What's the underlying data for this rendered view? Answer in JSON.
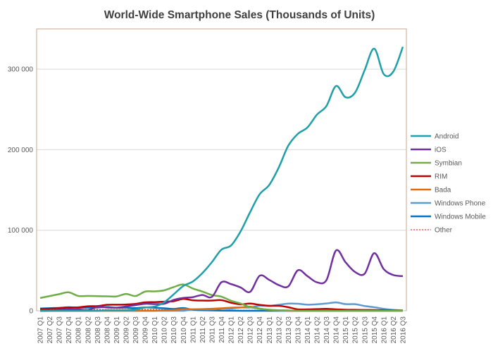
{
  "chart_data": {
    "type": "line",
    "title": "World-Wide Smartphone Sales (Thousands of Units)",
    "xlabel": "",
    "ylabel": "",
    "ylim": [
      0,
      350000
    ],
    "yticks": [
      0,
      100000,
      200000,
      300000
    ],
    "ytick_labels": [
      "0",
      "100 000",
      "200 000",
      "300 000"
    ],
    "grid": "horizontal",
    "legend_position": "right",
    "categories": [
      "2007 Q1",
      "2007 Q2",
      "2007 Q3",
      "2007 Q4",
      "2008 Q1",
      "2008 Q2",
      "2008 Q3",
      "2008 Q4",
      "2009 Q1",
      "2009 Q2",
      "2009 Q3",
      "2009 Q4",
      "2010 Q1",
      "2010 Q2",
      "2010 Q3",
      "2010 Q4",
      "2011 Q1",
      "2011 Q2",
      "2011 Q3",
      "2011 Q4",
      "2012 Q1",
      "2012 Q2",
      "2012 Q3",
      "2012 Q4",
      "2013 Q1",
      "2013 Q2",
      "2013 Q3",
      "2013 Q4",
      "2014 Q1",
      "2014 Q2",
      "2014 Q3",
      "2014 Q4",
      "2015 Q1",
      "2015 Q2",
      "2015 Q3",
      "2015 Q4",
      "2016 Q1",
      "2016 Q2",
      "2016 Q3"
    ],
    "series": [
      {
        "name": "Android",
        "color": "#1FA0A8",
        "dashed": false,
        "values": [
          0,
          0,
          0,
          0,
          0,
          0,
          0,
          640,
          575,
          756,
          1425,
          4043,
          5227,
          10606,
          20500,
          30801,
          36350,
          46776,
          60490,
          75906,
          81067,
          98529,
          122480,
          144720,
          156186,
          177898,
          205023,
          219613,
          227549,
          243484,
          254354,
          279058,
          265012,
          271010,
          298797,
          325394,
          293771,
          296912,
          327674
        ]
      },
      {
        "name": "iOS",
        "color": "#7030A0",
        "dashed": false,
        "values": [
          0,
          270,
          1105,
          1928,
          1726,
          893,
          4720,
          4079,
          3848,
          5325,
          7040,
          8676,
          8360,
          8743,
          13484,
          16011,
          16883,
          19629,
          17295,
          35456,
          33121,
          28935,
          23550,
          43457,
          38332,
          31900,
          30330,
          50224,
          43062,
          35345,
          38187,
          74832,
          60177,
          48086,
          46062,
          71526,
          51630,
          44395,
          43001
        ]
      },
      {
        "name": "Symbian",
        "color": "#70AD47",
        "dashed": false,
        "values": [
          15844,
          18273,
          20664,
          22903,
          18400,
          18405,
          18179,
          17949,
          17825,
          20881,
          18314,
          23857,
          24068,
          25387,
          29480,
          32642,
          27599,
          23853,
          19500,
          17458,
          12467,
          9072,
          4405,
          2569,
          1349,
          631,
          457,
          0,
          0,
          0,
          0,
          0,
          0,
          0,
          0,
          0,
          0,
          0,
          0
        ]
      },
      {
        "name": "RIM",
        "color": "#C00000",
        "dashed": false,
        "values": [
          2080,
          2500,
          3200,
          4025,
          4312,
          5594,
          5800,
          7443,
          7534,
          7782,
          8523,
          10508,
          10753,
          11229,
          11908,
          14762,
          13004,
          12652,
          12701,
          13185,
          9939,
          7991,
          8947,
          7333,
          6219,
          6180,
          4401,
          1807,
          1714,
          2044,
          2420,
          1734,
          1325,
          1153,
          977,
          907,
          660,
          400,
          200
        ]
      },
      {
        "name": "Bada",
        "color": "#E36C0A",
        "dashed": false,
        "values": [
          0,
          0,
          0,
          0,
          0,
          0,
          0,
          0,
          0,
          0,
          0,
          0,
          0,
          577,
          920,
          2026,
          1862,
          2056,
          2479,
          3111,
          3842,
          4208,
          5054,
          2684,
          1200,
          500,
          0,
          0,
          0,
          0,
          0,
          0,
          0,
          0,
          0,
          0,
          0,
          0,
          0
        ]
      },
      {
        "name": "Windows Phone",
        "color": "#5B9BD5",
        "dashed": false,
        "values": [
          0,
          0,
          0,
          0,
          0,
          0,
          0,
          0,
          0,
          0,
          0,
          0,
          0,
          0,
          0,
          0,
          1600,
          1724,
          1702,
          2759,
          2713,
          4087,
          4058,
          6186,
          5989,
          7408,
          8912,
          8760,
          7580,
          8095,
          9033,
          10425,
          8271,
          8198,
          5874,
          4395,
          2400,
          1100,
          500
        ]
      },
      {
        "name": "Windows Mobile",
        "color": "#0070C0",
        "dashed": false,
        "values": [
          2700,
          3200,
          3600,
          4374,
          3858,
          3874,
          4053,
          4714,
          3739,
          3830,
          3259,
          4203,
          3696,
          3059,
          2247,
          3419,
          1200,
          700,
          400,
          200,
          100,
          0,
          0,
          0,
          0,
          0,
          0,
          0,
          0,
          0,
          0,
          0,
          0,
          0,
          0,
          0,
          0,
          0,
          0
        ]
      },
      {
        "name": "Other",
        "color": "#FF0000",
        "dashed": true,
        "values": [
          1500,
          1600,
          1700,
          1800,
          1700,
          1600,
          1600,
          1500,
          1500,
          1500,
          1500,
          1600,
          1500,
          1400,
          1300,
          1200,
          1100,
          1000,
          900,
          800,
          800,
          700,
          700,
          600,
          600,
          500,
          500,
          500,
          400,
          400,
          400,
          400,
          300,
          300,
          300,
          300,
          300,
          300,
          300
        ]
      }
    ]
  }
}
